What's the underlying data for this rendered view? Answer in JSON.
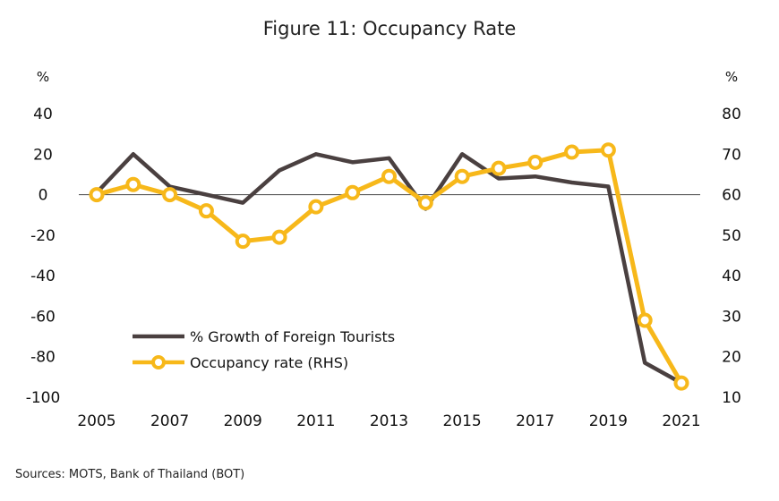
{
  "chart_data": {
    "type": "line",
    "title": "Figure 11: Occupancy Rate",
    "source": "Sources: MOTS, Bank of Thailand (BOT)",
    "y_left_unit": "%",
    "y_right_unit": "%",
    "y_left_lim": [
      -100,
      40
    ],
    "y_right_lim": [
      10,
      80
    ],
    "y_left_ticks": [
      "40",
      "20",
      "0",
      "-20",
      "-40",
      "-60",
      "-80",
      "-100"
    ],
    "y_right_ticks": [
      "80",
      "70",
      "60",
      "50",
      "40",
      "30",
      "20",
      "10"
    ],
    "x": [
      2005,
      2006,
      2007,
      2008,
      2009,
      2010,
      2011,
      2012,
      2013,
      2014,
      2015,
      2016,
      2017,
      2018,
      2019,
      2020,
      2021
    ],
    "x_tick_labels": [
      "2005",
      "2007",
      "2009",
      "2011",
      "2013",
      "2015",
      "2017",
      "2019",
      "2021"
    ],
    "grid": false,
    "zero_line": true,
    "legend_position": "lower-left",
    "series": [
      {
        "name": "% Growth of Foreign Tourists",
        "axis": "left",
        "color": "#4a4040",
        "marker": "none",
        "values": [
          1,
          20,
          4,
          0,
          -4,
          12,
          20,
          16,
          18,
          -7,
          20,
          8,
          9,
          6,
          4,
          -83,
          -93
        ]
      },
      {
        "name": "Occupancy rate (RHS)",
        "axis": "right",
        "color": "#f7b81a",
        "marker": "circle",
        "values": [
          60,
          62.5,
          60,
          56,
          48.5,
          49.5,
          57,
          60.5,
          64.5,
          58,
          64.5,
          66.5,
          68,
          70.5,
          71,
          29,
          13.5
        ]
      }
    ]
  }
}
